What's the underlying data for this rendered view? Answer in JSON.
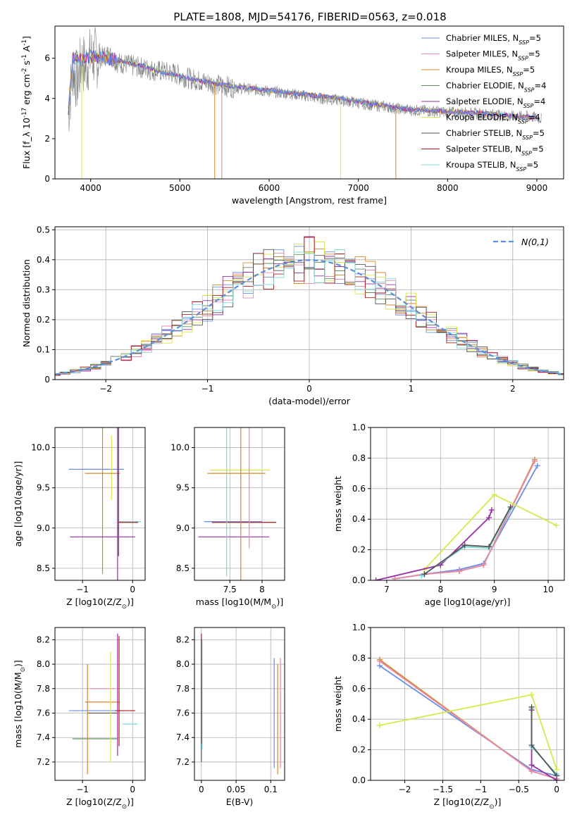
{
  "figure": {
    "title": "PLATE=1808, MJD=54176, FIBERID=0563, z=0.018"
  },
  "series_names": [
    "Chabrier MILES, N_SSP=5",
    "Salpeter MILES, N_SSP=5",
    "Kroupa MILES, N_SSP=5",
    "Chabrier ELODIE, N_SSP=4",
    "Salpeter ELODIE, N_SSP=4",
    "Kroupa ELODIE, N_SSP=4",
    "Chabrier STELIB, N_SSP=5",
    "Salpeter STELIB, N_SSP=5",
    "Kroupa STELIB, N_SSP=5"
  ],
  "colors": [
    "#6a8ee8",
    "#e88aa8",
    "#d18a2c",
    "#5e8e5e",
    "#9a2ea6",
    "#d8e84a",
    "#555555",
    "#b01a1a",
    "#7ad8d8"
  ],
  "chart_data": [
    {
      "id": "spectrum",
      "type": "line",
      "title": "PLATE=1808, MJD=54176, FIBERID=0563, z=0.018",
      "xlabel": "wavelength [Angstrom, rest frame]",
      "ylabel": "Flux [f_λ 10^-17 erg cm^-2 s^-1 A^-1]",
      "xlim": [
        3600,
        9300
      ],
      "ylim": [
        0,
        7.6
      ],
      "xticks": [
        4000,
        5000,
        6000,
        7000,
        8000,
        9000
      ],
      "yticks": [
        0,
        2,
        4,
        6
      ],
      "legend": "top-right",
      "data_series": {
        "name": "",
        "x": [
          3750,
          3800,
          3850,
          3900,
          3950,
          4000,
          4100,
          4200,
          4300,
          4400,
          4500,
          4700,
          4900,
          5100,
          5300,
          5500,
          5700,
          5900,
          6100,
          6300,
          6500,
          6700,
          6900,
          7100,
          7300,
          7500,
          7700,
          7900,
          8100,
          8300,
          8500,
          8700,
          8900,
          9050
        ],
        "y": [
          3.2,
          5.5,
          4.8,
          5.8,
          5.6,
          6.1,
          6.0,
          6.2,
          5.8,
          5.7,
          5.6,
          5.4,
          5.3,
          5.0,
          4.8,
          4.6,
          4.5,
          4.4,
          4.3,
          4.2,
          4.05,
          3.95,
          3.85,
          3.7,
          3.6,
          3.45,
          3.4,
          3.35,
          3.3,
          3.25,
          3.2,
          3.1,
          3.1,
          3.0
        ]
      },
      "model_series": {
        "x": [
          3750,
          3800,
          3900,
          4000,
          4200,
          4400,
          4600,
          4800,
          5000,
          5200,
          5400,
          5600,
          5800,
          6000,
          6200,
          6400,
          6600,
          6800,
          7000,
          7200,
          7400,
          7600,
          7800,
          8000,
          8200,
          8400,
          8600,
          8800,
          9000
        ],
        "y": [
          3.4,
          6.0,
          5.9,
          6.1,
          6.0,
          5.8,
          5.6,
          5.3,
          5.1,
          4.9,
          4.75,
          4.6,
          4.5,
          4.4,
          4.3,
          4.2,
          4.1,
          4.0,
          3.85,
          3.7,
          3.55,
          3.45,
          3.4,
          3.35,
          3.3,
          3.25,
          3.2,
          3.1,
          3.05
        ]
      }
    },
    {
      "id": "residuals",
      "type": "line",
      "xlabel": "(data-model)/error",
      "ylabel": "Normed distribution",
      "xlim": [
        -2.5,
        2.5
      ],
      "ylim": [
        0,
        0.51
      ],
      "xticks": [
        -2,
        -1,
        0,
        1,
        2
      ],
      "yticks": [
        0.0,
        0.1,
        0.2,
        0.3,
        0.4,
        0.5
      ],
      "legend": "top-right",
      "legend_label": "N(0,1)",
      "bin_width": 0.1
    },
    {
      "id": "age-vs-Z",
      "type": "scatter",
      "xlabel": "Z [log10(Z/Z⊙)]",
      "ylabel": "age [log10(age/yr)]",
      "xlim": [
        -1.55,
        0.25
      ],
      "ylim": [
        8.35,
        10.25
      ],
      "xticks": [
        -1,
        0
      ],
      "yticks": [
        8.5,
        9.0,
        9.5,
        10.0
      ],
      "points": [
        {
          "x": -0.72,
          "y": 9.73,
          "xerr": 0.55,
          "yerr": 0.0,
          "series": 0
        },
        {
          "x": -0.42,
          "y": 9.75,
          "xerr": 0.0,
          "yerr": 0.4,
          "series": 5
        },
        {
          "x": -0.6,
          "y": 9.68,
          "xerr": 0.35,
          "yerr": 1.25,
          "series": 2
        },
        {
          "x": -0.3,
          "y": 9.5,
          "xerr": 0.0,
          "yerr": 1.2,
          "series": 4
        },
        {
          "x": -0.28,
          "y": 9.5,
          "xerr": 0.0,
          "yerr": 0.85,
          "series": 6
        },
        {
          "x": -0.05,
          "y": 9.08,
          "xerr": 0.22,
          "yerr": 0.0,
          "series": 8
        },
        {
          "x": -0.09,
          "y": 9.07,
          "xerr": 0.2,
          "yerr": 0.0,
          "series": 7
        },
        {
          "x": -0.6,
          "y": 8.89,
          "xerr": 0.65,
          "yerr": 0.0,
          "series": 4
        }
      ]
    },
    {
      "id": "age-vs-mass",
      "type": "scatter",
      "xlabel": "mass [log10(M/M⊙)]",
      "ylabel": "",
      "xlim": [
        6.95,
        8.35
      ],
      "ylim": [
        8.35,
        10.25
      ],
      "xticks": [
        7.5,
        8.0
      ],
      "yticks": [
        8.5,
        9.0,
        9.5,
        10.0
      ],
      "points": [
        {
          "x": 7.66,
          "y": 9.72,
          "xerr": 0.46,
          "yerr": 0.0,
          "series": 5
        },
        {
          "x": 7.6,
          "y": 9.68,
          "xerr": 0.45,
          "yerr": 0.0,
          "series": 2
        },
        {
          "x": 7.55,
          "y": 9.08,
          "xerr": 0.45,
          "yerr": 0.0,
          "series": 0
        },
        {
          "x": 7.72,
          "y": 9.07,
          "xerr": 0.5,
          "yerr": 0.0,
          "series": 7
        },
        {
          "x": 7.56,
          "y": 8.89,
          "xerr": 0.55,
          "yerr": 0.0,
          "series": 4
        },
        {
          "x": 7.45,
          "y": 9.5,
          "xerr": 0.0,
          "yerr": 1.1,
          "series": 8
        },
        {
          "x": 7.67,
          "y": 9.5,
          "xerr": 0.0,
          "yerr": 1.25,
          "series": 2
        },
        {
          "x": 7.8,
          "y": 9.5,
          "xerr": 0.0,
          "yerr": 0.75,
          "series": 1
        }
      ]
    },
    {
      "id": "weight-vs-age",
      "type": "line",
      "xlabel": "age [log10(age/yr)]",
      "ylabel": "mass weight",
      "xlim": [
        6.7,
        10.3
      ],
      "ylim": [
        0,
        1.0
      ],
      "xticks": [
        7,
        8,
        9,
        10
      ],
      "yticks": [
        0.0,
        0.2,
        0.4,
        0.6,
        0.8,
        1.0
      ],
      "series": [
        {
          "series": 0,
          "x": [
            7.15,
            7.7,
            8.35,
            8.8,
            9.8
          ],
          "y": [
            0.01,
            0.04,
            0.07,
            0.11,
            0.75
          ]
        },
        {
          "series": 2,
          "x": [
            7.15,
            7.7,
            8.35,
            8.8,
            9.75
          ],
          "y": [
            0.01,
            0.04,
            0.06,
            0.1,
            0.79
          ]
        },
        {
          "series": 1,
          "x": [
            7.15,
            7.7,
            8.35,
            8.8,
            9.75
          ],
          "y": [
            0.01,
            0.04,
            0.06,
            0.1,
            0.78
          ]
        },
        {
          "series": 5,
          "x": [
            7.7,
            9.0,
            10.15
          ],
          "y": [
            0.07,
            0.56,
            0.36
          ]
        },
        {
          "series": 4,
          "x": [
            6.8,
            8.0,
            8.9,
            8.95
          ],
          "y": [
            0.0,
            0.1,
            0.41,
            0.46
          ]
        },
        {
          "series": 8,
          "x": [
            7.65,
            8.45,
            8.9,
            9.3
          ],
          "y": [
            0.03,
            0.22,
            0.21,
            0.47
          ]
        },
        {
          "series": 6,
          "x": [
            7.7,
            8.45,
            8.9,
            9.3
          ],
          "y": [
            0.04,
            0.23,
            0.22,
            0.48
          ]
        }
      ]
    },
    {
      "id": "mass-vs-Z",
      "type": "scatter",
      "xlabel": "Z [log10(Z/Z⊙)]",
      "ylabel": "mass [log10(M/M⊙)]",
      "xlim": [
        -1.55,
        0.25
      ],
      "ylim": [
        7.05,
        8.3
      ],
      "xticks": [
        -1,
        0
      ],
      "yticks": [
        7.2,
        7.4,
        7.6,
        7.8,
        8.0,
        8.2
      ],
      "points": [
        {
          "x": -0.72,
          "y": 7.62,
          "xerr": 0.55,
          "yerr": 0.0,
          "series": 0
        },
        {
          "x": -0.6,
          "y": 7.69,
          "xerr": 0.35,
          "yerr": 0.0,
          "series": 2
        },
        {
          "x": -0.6,
          "y": 7.8,
          "xerr": 0.25,
          "yerr": 0.0,
          "series": 1
        },
        {
          "x": -0.6,
          "y": 7.6,
          "xerr": 0.3,
          "yerr": 0.0,
          "series": 6
        },
        {
          "x": -0.75,
          "y": 7.39,
          "xerr": 0.45,
          "yerr": 0.0,
          "series": 3
        },
        {
          "x": -0.15,
          "y": 7.62,
          "xerr": 0.2,
          "yerr": 0.0,
          "series": 7
        },
        {
          "x": -0.05,
          "y": 7.51,
          "xerr": 0.15,
          "yerr": 0.0,
          "series": 8
        },
        {
          "x": -0.9,
          "y": 7.55,
          "xerr": 0.0,
          "yerr": 0.45,
          "series": 2
        },
        {
          "x": -0.44,
          "y": 7.65,
          "xerr": 0.0,
          "yerr": 0.45,
          "series": 5
        },
        {
          "x": -0.3,
          "y": 7.75,
          "xerr": 0.0,
          "yerr": 0.5,
          "series": 4
        },
        {
          "x": -0.27,
          "y": 7.78,
          "xerr": 0.0,
          "yerr": 0.45,
          "series": 7
        }
      ]
    },
    {
      "id": "mass-vs-ebv",
      "type": "scatter",
      "xlabel": "E(B-V)",
      "ylabel": "",
      "xlim": [
        -0.01,
        0.12
      ],
      "ylim": [
        7.05,
        8.3
      ],
      "xticks": [
        0.0,
        0.05,
        0.1
      ],
      "yticks": [
        7.2,
        7.4,
        7.6,
        7.8,
        8.0,
        8.2
      ],
      "points": [
        {
          "x": 0.0,
          "y": 7.7,
          "xerr": 0.0,
          "yerr": 0.5,
          "series": 6
        },
        {
          "x": 0.001,
          "y": 7.75,
          "xerr": 0.0,
          "yerr": 0.45,
          "series": 8
        },
        {
          "x": 0.0,
          "y": 7.8,
          "xerr": 0.0,
          "yerr": 0.45,
          "series": 7
        },
        {
          "x": 0.105,
          "y": 7.6,
          "xerr": 0.0,
          "yerr": 0.45,
          "series": 0
        },
        {
          "x": 0.11,
          "y": 7.55,
          "xerr": 0.0,
          "yerr": 0.45,
          "series": 2
        },
        {
          "x": 0.114,
          "y": 7.6,
          "xerr": 0.0,
          "yerr": 0.45,
          "series": 1
        }
      ]
    },
    {
      "id": "weight-vs-Z",
      "type": "line",
      "xlabel": "Z [log10(Z/Z⊙)]",
      "ylabel": "mass weight",
      "xlim": [
        -2.45,
        0.1
      ],
      "ylim": [
        0,
        1.0
      ],
      "xticks": [
        -2.0,
        -1.5,
        -1.0,
        -0.5,
        0.0
      ],
      "yticks": [
        0.0,
        0.2,
        0.4,
        0.6,
        0.8,
        1.0
      ],
      "series": [
        {
          "series": 0,
          "x": [
            -2.33,
            -0.33,
            0.0
          ],
          "y": [
            0.75,
            0.07,
            0.03
          ]
        },
        {
          "series": 2,
          "x": [
            -2.33,
            -0.33,
            0.0
          ],
          "y": [
            0.79,
            0.06,
            0.01
          ]
        },
        {
          "series": 1,
          "x": [
            -2.33,
            -0.33,
            0.0
          ],
          "y": [
            0.78,
            0.06,
            0.01
          ]
        },
        {
          "series": 5,
          "x": [
            -2.33,
            -0.33,
            0.0
          ],
          "y": [
            0.36,
            0.56,
            0.07
          ]
        },
        {
          "series": 4,
          "x": [
            -0.33,
            -0.33,
            0.0
          ],
          "y": [
            0.46,
            0.1,
            0.0
          ]
        },
        {
          "series": 8,
          "x": [
            -0.33,
            -0.33,
            0.0
          ],
          "y": [
            0.47,
            0.22,
            0.04
          ]
        },
        {
          "series": 6,
          "x": [
            -0.33,
            -0.33,
            0.0
          ],
          "y": [
            0.48,
            0.23,
            0.03
          ]
        }
      ]
    }
  ]
}
